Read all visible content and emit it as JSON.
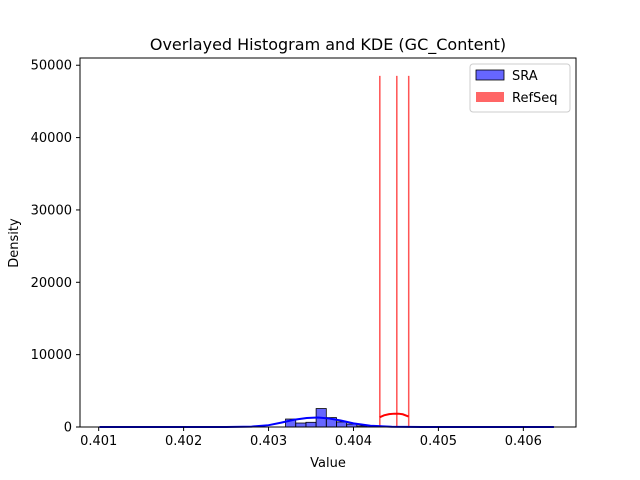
{
  "chart_data": {
    "type": "bar",
    "title": "Overlayed Histogram and KDE (GC_Content)",
    "xlabel": "Value",
    "ylabel": "Density",
    "xlim": [
      0.40078,
      0.40662
    ],
    "ylim": [
      0,
      51000
    ],
    "x_ticks": [
      "0.401",
      "0.402",
      "0.403",
      "0.404",
      "0.405",
      "0.406"
    ],
    "x_tick_values": [
      0.401,
      0.402,
      0.403,
      0.404,
      0.405,
      0.406
    ],
    "y_ticks": [
      "0",
      "10000",
      "20000",
      "30000",
      "40000",
      "50000"
    ],
    "y_tick_values": [
      0,
      10000,
      20000,
      30000,
      40000,
      50000
    ],
    "grid": false,
    "legend_position": "top-right",
    "colors": {
      "SRA": "#0000ff",
      "RefSeq": "#ff0000"
    },
    "series": [
      {
        "name": "SRA",
        "histogram": [
          {
            "x0": 0.4032,
            "x1": 0.40332,
            "value": 1100
          },
          {
            "x0": 0.40332,
            "x1": 0.40344,
            "value": 550
          },
          {
            "x0": 0.40344,
            "x1": 0.40356,
            "value": 650
          },
          {
            "x0": 0.40356,
            "x1": 0.40368,
            "value": 2550
          },
          {
            "x0": 0.40368,
            "x1": 0.4038,
            "value": 1300
          },
          {
            "x0": 0.4038,
            "x1": 0.40392,
            "value": 700
          },
          {
            "x0": 0.40392,
            "x1": 0.40404,
            "value": 400
          },
          {
            "x0": 0.40404,
            "x1": 0.40416,
            "value": 150
          }
        ],
        "kde": [
          [
            0.40101,
            0
          ],
          [
            0.402,
            0
          ],
          [
            0.4025,
            8
          ],
          [
            0.4028,
            60
          ],
          [
            0.403,
            250
          ],
          [
            0.40315,
            600
          ],
          [
            0.4033,
            1000
          ],
          [
            0.40345,
            1250
          ],
          [
            0.40358,
            1310
          ],
          [
            0.4037,
            1200
          ],
          [
            0.40385,
            900
          ],
          [
            0.404,
            500
          ],
          [
            0.4042,
            180
          ],
          [
            0.40445,
            40
          ],
          [
            0.4048,
            4
          ],
          [
            0.4052,
            0
          ],
          [
            0.40636,
            0
          ]
        ]
      },
      {
        "name": "RefSeq",
        "histogram": [
          {
            "x0": 0.40431,
            "x1": 0.40431,
            "value": 48500
          },
          {
            "x0": 0.40451,
            "x1": 0.40451,
            "value": 48500
          },
          {
            "x0": 0.40465,
            "x1": 0.40465,
            "value": 48500
          }
        ],
        "kde": [
          [
            0.40431,
            1350
          ],
          [
            0.40436,
            1620
          ],
          [
            0.40442,
            1780
          ],
          [
            0.40448,
            1840
          ],
          [
            0.40453,
            1840
          ],
          [
            0.40458,
            1760
          ],
          [
            0.40465,
            1450
          ]
        ]
      }
    ]
  }
}
